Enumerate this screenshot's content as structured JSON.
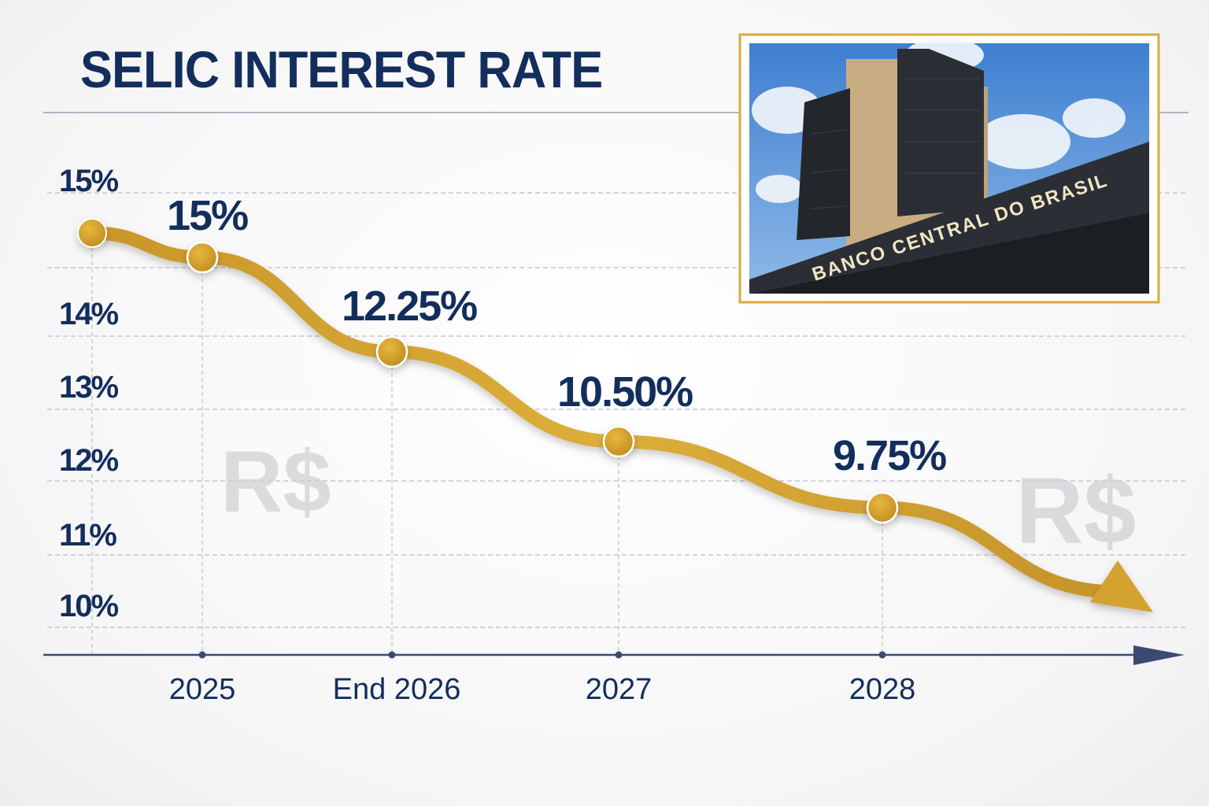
{
  "title": "SELIC INTEREST RATE",
  "photo": {
    "sign_text": "BANCO CENTRAL DO BRASIL",
    "frame_color": "#d9a93a"
  },
  "watermarks": [
    "R$",
    "R$"
  ],
  "colors": {
    "line": "#d4a22e",
    "text": "#132e5c",
    "axis": "#3a4a72",
    "grid": "#b9bccb"
  },
  "chart_data": {
    "type": "line",
    "title": "SELIC INTEREST RATE",
    "xlabel": "",
    "ylabel": "",
    "y_tick_labels": [
      "15%",
      "14%",
      "13%",
      "12%",
      "11%",
      "10%"
    ],
    "x_tick_labels": [
      "2025",
      "End 2026",
      "2027",
      "2028"
    ],
    "grid": true,
    "trend": "downward arrow",
    "start_point": {
      "value": 15
    },
    "points": [
      {
        "x": "2025",
        "value": 15,
        "label": "15%"
      },
      {
        "x": "End 2026",
        "value": 12.25,
        "label": "12.25%"
      },
      {
        "x": "2027",
        "value": 10.5,
        "label": "10.50%"
      },
      {
        "x": "2028",
        "value": 9.75,
        "label": "9.75%"
      }
    ]
  }
}
